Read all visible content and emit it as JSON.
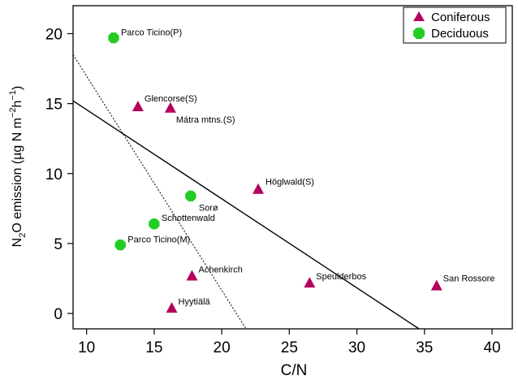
{
  "chart_data": {
    "type": "scatter",
    "xlabel": "C/N",
    "ylabel": {
      "pre": "N",
      "sub1": "2",
      "mid": "O emission (µg N m",
      "sup1": "−2",
      "mid2": "h",
      "sup2": "−1",
      "post": ")"
    },
    "xlim": [
      9,
      41.5
    ],
    "ylim": [
      -1.1,
      22
    ],
    "xticks": [
      10,
      15,
      20,
      25,
      30,
      35,
      40
    ],
    "yticks": [
      0,
      5,
      10,
      15,
      20
    ],
    "grid": false,
    "legend_position": "top-right",
    "colors": {
      "coniferous": "#b5005e",
      "deciduous": "#22cc22",
      "line": "#000000"
    },
    "series": [
      {
        "name": "Coniferous",
        "marker": "triangle",
        "points": [
          {
            "label": "Glencorse(S)",
            "x": 13.8,
            "y": 14.8
          },
          {
            "label": "Mátra mtns.(S)",
            "x": 16.2,
            "y": 14.7
          },
          {
            "label": "Höglwald(S)",
            "x": 22.7,
            "y": 8.9
          },
          {
            "label": "Achenkirch",
            "x": 17.8,
            "y": 2.7
          },
          {
            "label": "Speulderbos",
            "x": 26.5,
            "y": 2.2
          },
          {
            "label": "San Rossore",
            "x": 35.9,
            "y": 2.0
          },
          {
            "label": "Hyytiälä",
            "x": 16.3,
            "y": 0.4
          }
        ]
      },
      {
        "name": "Deciduous",
        "marker": "octagon",
        "points": [
          {
            "label": "Parco Ticino(P)",
            "x": 12.0,
            "y": 19.7
          },
          {
            "label": "Sorø",
            "x": 17.7,
            "y": 8.4
          },
          {
            "label": "Schottenwald",
            "x": 15.0,
            "y": 6.4
          },
          {
            "label": "Parco Ticino(M)",
            "x": 12.5,
            "y": 4.9
          }
        ]
      }
    ],
    "lines": [
      {
        "style": "solid",
        "from": [
          9,
          15.2
        ],
        "to": [
          34.6,
          -1.1
        ]
      },
      {
        "style": "dotted",
        "from": [
          9,
          18.5
        ],
        "to": [
          21.8,
          -1.1
        ]
      }
    ]
  }
}
